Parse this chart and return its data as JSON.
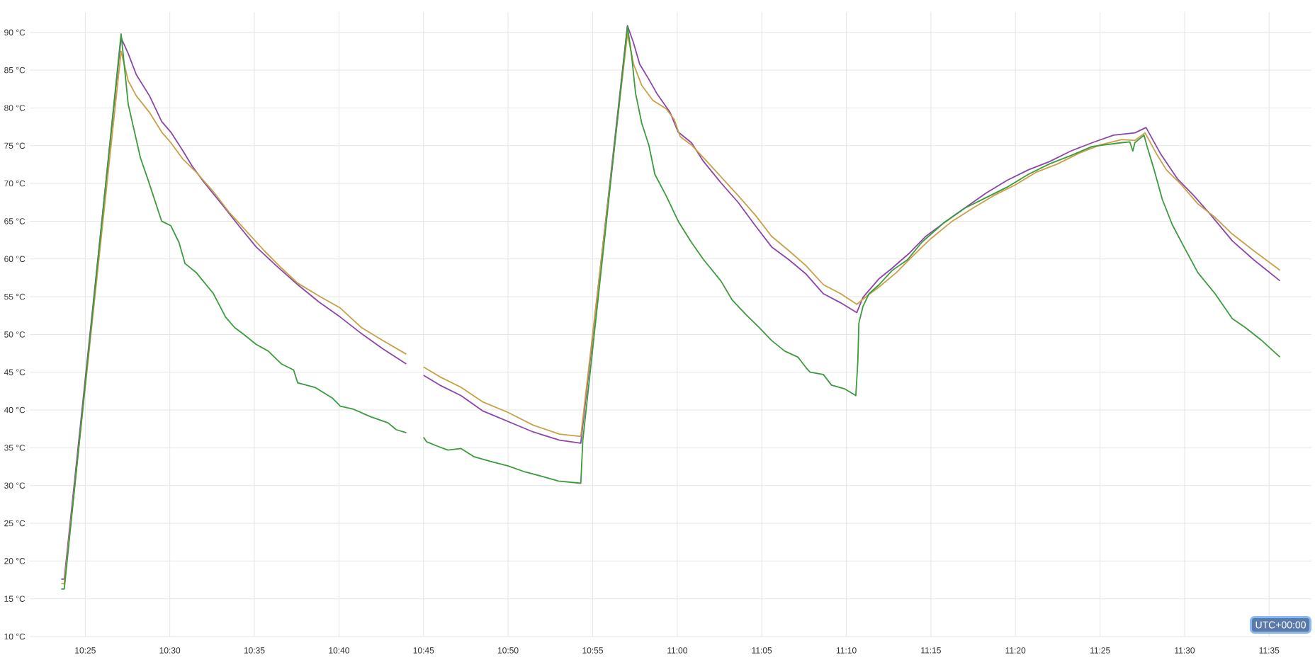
{
  "chart_data": {
    "type": "line",
    "xlim": [
      10.362,
      11.625
    ],
    "ylim": [
      10,
      92.7
    ],
    "xticks": [
      {
        "value": 10.4167,
        "label": "10:25"
      },
      {
        "value": 10.5,
        "label": "10:30"
      },
      {
        "value": 10.5833,
        "label": "10:35"
      },
      {
        "value": 10.6667,
        "label": "10:40"
      },
      {
        "value": 10.75,
        "label": "10:45"
      },
      {
        "value": 10.8333,
        "label": "10:50"
      },
      {
        "value": 10.9167,
        "label": "10:55"
      },
      {
        "value": 11,
        "label": "11:00"
      },
      {
        "value": 11.0833,
        "label": "11:05"
      },
      {
        "value": 11.1667,
        "label": "11:10"
      },
      {
        "value": 11.25,
        "label": "11:15"
      },
      {
        "value": 11.3333,
        "label": "11:20"
      },
      {
        "value": 11.4167,
        "label": "11:25"
      },
      {
        "value": 11.5,
        "label": "11:30"
      },
      {
        "value": 11.5833,
        "label": "11:35"
      }
    ],
    "yticks": [
      {
        "value": 10,
        "label": "10 °C"
      },
      {
        "value": 15,
        "label": "15 °C"
      },
      {
        "value": 20,
        "label": "20 °C"
      },
      {
        "value": 25,
        "label": "25 °C"
      },
      {
        "value": 30,
        "label": "30 °C"
      },
      {
        "value": 35,
        "label": "35 °C"
      },
      {
        "value": 40,
        "label": "40 °C"
      },
      {
        "value": 45,
        "label": "45 °C"
      },
      {
        "value": 50,
        "label": "50 °C"
      },
      {
        "value": 55,
        "label": "55 °C"
      },
      {
        "value": 60,
        "label": "60 °C"
      },
      {
        "value": 65,
        "label": "65 °C"
      },
      {
        "value": 70,
        "label": "70 °C"
      },
      {
        "value": 75,
        "label": "75 °C"
      },
      {
        "value": 80,
        "label": "80 °C"
      },
      {
        "value": 85,
        "label": "85 °C"
      },
      {
        "value": 90,
        "label": "90 °C"
      }
    ],
    "grid": true,
    "annotations": [
      "UTC+00:00"
    ],
    "series": [
      {
        "color": "#8c46aa",
        "x": [
          10.393,
          10.396,
          10.452,
          10.459,
          10.467,
          10.48,
          10.492,
          10.501,
          10.513,
          10.522,
          10.534,
          10.551,
          10.568,
          10.585,
          10.605,
          10.626,
          10.647,
          10.668,
          10.689,
          10.71,
          10.733,
          10.742,
          10.75,
          10.766,
          10.787,
          10.808,
          10.833,
          10.858,
          10.884,
          10.905,
          10.951,
          10.957,
          10.963,
          10.972,
          10.98,
          10.993,
          11.001,
          11.014,
          11.026,
          11.043,
          11.06,
          11.077,
          11.093,
          11.11,
          11.127,
          11.144,
          11.161,
          11.177,
          11.183,
          11.199,
          11.212,
          11.229,
          11.245,
          11.262,
          11.283,
          11.304,
          11.325,
          11.346,
          11.367,
          11.388,
          11.409,
          11.43,
          11.451,
          11.462,
          11.476,
          11.493,
          11.509,
          11.526,
          11.547,
          11.568,
          11.594
        ],
        "values": [
          17.6,
          17.6,
          89.3,
          87.2,
          84.4,
          81.6,
          78.2,
          76.8,
          74.3,
          72.3,
          70.1,
          67.3,
          64.4,
          61.6,
          59.1,
          56.6,
          54.3,
          52.3,
          50.1,
          48.1,
          46.1,
          null,
          44.6,
          43.3,
          41.9,
          39.9,
          38.5,
          37.1,
          36.0,
          35.6,
          90.9,
          88.6,
          85.8,
          83.8,
          81.9,
          79.4,
          76.8,
          75.4,
          72.9,
          70.1,
          67.5,
          64.4,
          61.6,
          59.9,
          58.0,
          55.4,
          54.2,
          52.9,
          54.9,
          57.4,
          58.8,
          60.8,
          63.0,
          64.7,
          66.7,
          68.7,
          70.4,
          71.8,
          72.9,
          74.3,
          75.4,
          76.4,
          76.7,
          77.4,
          74.0,
          70.6,
          68.4,
          65.8,
          62.4,
          59.9,
          57.1
        ]
      },
      {
        "color": "#c8a046",
        "x": [
          10.393,
          10.396,
          10.452,
          10.459,
          10.467,
          10.48,
          10.492,
          10.501,
          10.513,
          10.526,
          10.543,
          10.559,
          10.576,
          10.593,
          10.61,
          10.626,
          10.647,
          10.668,
          10.689,
          10.71,
          10.733,
          10.742,
          10.75,
          10.766,
          10.787,
          10.808,
          10.833,
          10.858,
          10.884,
          10.905,
          10.951,
          10.957,
          10.965,
          10.976,
          10.989,
          10.997,
          11.003,
          11.014,
          11.026,
          11.043,
          11.06,
          11.077,
          11.093,
          11.11,
          11.127,
          11.144,
          11.161,
          11.177,
          11.187,
          11.199,
          11.216,
          11.233,
          11.25,
          11.271,
          11.291,
          11.312,
          11.333,
          11.354,
          11.375,
          11.396,
          11.417,
          11.438,
          11.451,
          11.461,
          11.472,
          11.482,
          11.497,
          11.513,
          11.53,
          11.547,
          11.568,
          11.594
        ],
        "values": [
          17.0,
          17.0,
          87.5,
          83.6,
          81.6,
          79.4,
          76.8,
          75.4,
          73.2,
          71.5,
          68.9,
          66.1,
          63.6,
          61.1,
          58.8,
          56.8,
          55.1,
          53.5,
          50.9,
          49.2,
          47.4,
          null,
          45.7,
          44.4,
          43.0,
          41.1,
          39.7,
          38.0,
          36.8,
          36.5,
          89.8,
          85.8,
          83.0,
          81.0,
          79.9,
          78.5,
          76.2,
          75.1,
          73.4,
          70.9,
          68.4,
          65.8,
          63.0,
          61.1,
          59.1,
          56.6,
          55.4,
          54.0,
          55.1,
          56.3,
          58.2,
          60.5,
          62.7,
          65.0,
          66.7,
          68.4,
          69.8,
          71.5,
          72.6,
          74.0,
          75.1,
          75.8,
          75.7,
          76.7,
          74.0,
          71.8,
          69.8,
          67.3,
          65.5,
          63.3,
          61.1,
          58.5
        ]
      },
      {
        "color": "#3c9b3c",
        "x": [
          10.393,
          10.396,
          10.452,
          10.459,
          10.471,
          10.479,
          10.492,
          10.501,
          10.509,
          10.515,
          10.526,
          10.543,
          10.555,
          10.564,
          10.572,
          10.585,
          10.597,
          10.61,
          10.622,
          10.626,
          10.643,
          10.66,
          10.668,
          10.681,
          10.698,
          10.715,
          10.723,
          10.733,
          10.742,
          10.75,
          10.753,
          10.764,
          10.774,
          10.787,
          10.8,
          10.816,
          10.833,
          10.85,
          10.867,
          10.883,
          10.905,
          10.907,
          10.951,
          10.955,
          10.959,
          10.965,
          10.972,
          10.978,
          10.989,
          11.001,
          11.014,
          11.026,
          11.043,
          11.054,
          11.068,
          11.081,
          11.093,
          11.106,
          11.119,
          11.127,
          11.131,
          11.144,
          11.152,
          11.165,
          11.175,
          11.176,
          11.178,
          11.179,
          11.183,
          11.189,
          11.199,
          11.212,
          11.227,
          11.241,
          11.262,
          11.283,
          11.304,
          11.325,
          11.346,
          11.367,
          11.388,
          11.409,
          11.421,
          11.438,
          11.446,
          11.449,
          11.451,
          11.46,
          11.463,
          11.47,
          11.478,
          11.488,
          11.499,
          11.513,
          11.53,
          11.547,
          11.56,
          11.576,
          11.594
        ],
        "values": [
          16.3,
          16.3,
          89.8,
          80.5,
          73.4,
          70.3,
          65.0,
          64.4,
          62.2,
          59.4,
          58.2,
          55.4,
          52.3,
          50.9,
          50.1,
          48.7,
          47.8,
          46.1,
          45.3,
          43.6,
          43.0,
          41.6,
          40.5,
          40.1,
          39.1,
          38.3,
          37.4,
          37.0,
          null,
          36.4,
          35.8,
          35.2,
          34.7,
          34.9,
          33.8,
          33.2,
          32.6,
          31.8,
          31.2,
          30.6,
          30.3,
          36.0,
          90.8,
          87.0,
          81.9,
          78.0,
          75.1,
          71.2,
          68.4,
          65.0,
          62.2,
          59.9,
          57.1,
          54.6,
          52.6,
          50.9,
          49.2,
          47.8,
          47.0,
          45.6,
          45.0,
          44.7,
          43.3,
          42.8,
          42.0,
          41.9,
          46.4,
          51.5,
          53.7,
          55.4,
          56.6,
          58.5,
          59.9,
          62.2,
          64.7,
          66.7,
          68.1,
          69.5,
          71.2,
          72.6,
          73.7,
          74.9,
          75.1,
          75.4,
          75.5,
          74.3,
          75.4,
          76.4,
          74.9,
          71.8,
          67.9,
          64.5,
          61.7,
          58.2,
          55.4,
          52.1,
          50.9,
          49.2,
          47.0
        ]
      }
    ]
  }
}
